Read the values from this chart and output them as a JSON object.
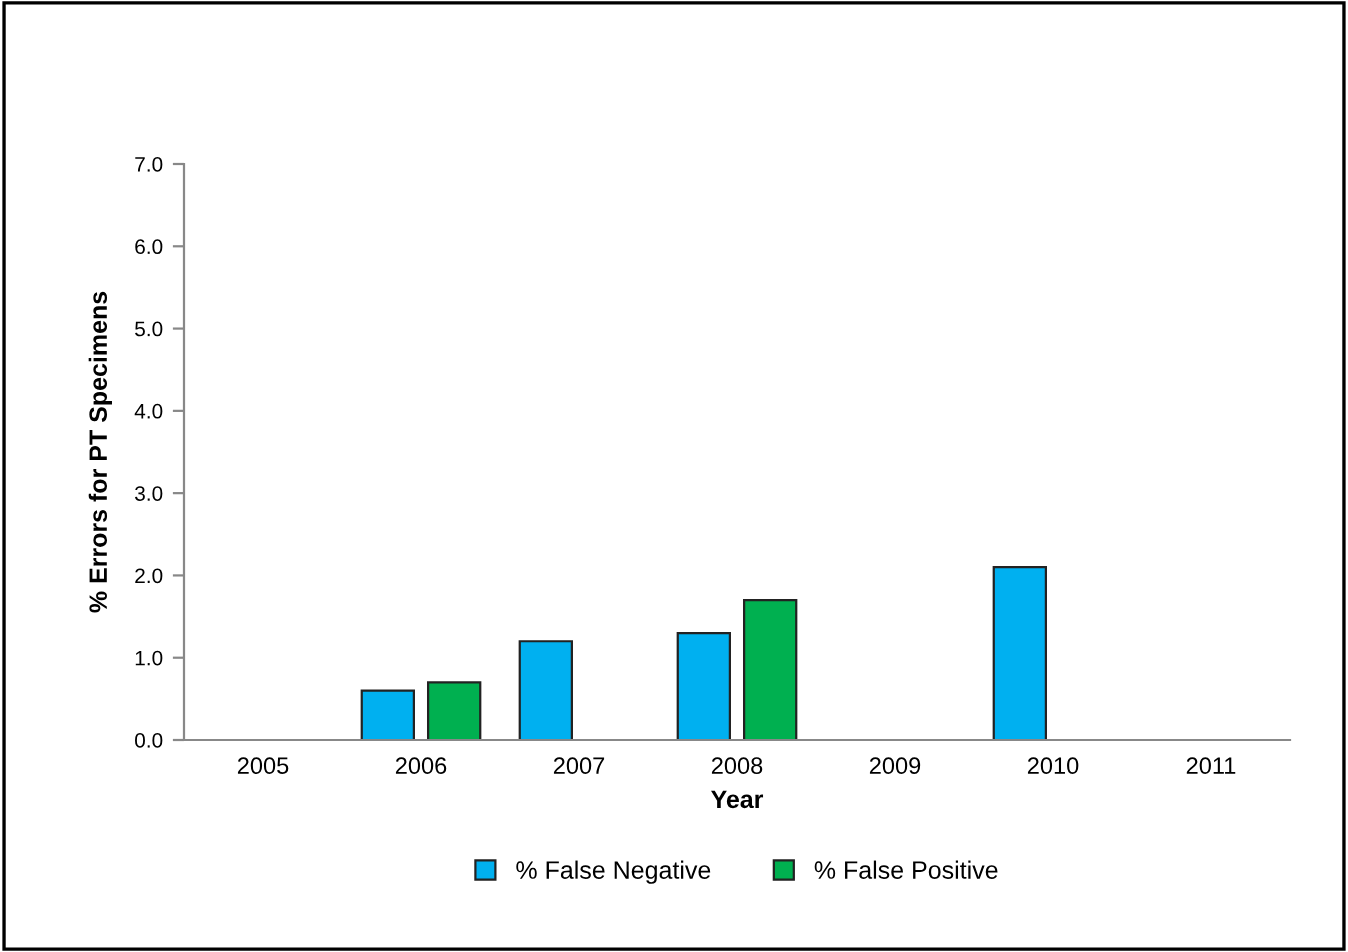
{
  "chart_data": {
    "type": "bar",
    "xlabel": "Year",
    "ylabel": "% Errors for PT Specimens",
    "categories": [
      "2005",
      "2006",
      "2007",
      "2008",
      "2009",
      "2010",
      "2011"
    ],
    "series": [
      {
        "name": "% False Negative",
        "color": "#00b0f0",
        "values": [
          null,
          0.6,
          1.2,
          1.3,
          null,
          2.1,
          null
        ]
      },
      {
        "name": "% False Positive",
        "color": "#00b050",
        "values": [
          null,
          0.7,
          null,
          1.7,
          null,
          null,
          null
        ]
      }
    ],
    "ylim": [
      0,
      7
    ],
    "yticks": [
      {
        "value": 0,
        "label": "0.0"
      },
      {
        "value": 1,
        "label": "1.0"
      },
      {
        "value": 2,
        "label": "2.0"
      },
      {
        "value": 3,
        "label": "3.0"
      },
      {
        "value": 4,
        "label": "4.0"
      },
      {
        "value": 5,
        "label": "5.0"
      },
      {
        "value": 6,
        "label": "6.0"
      },
      {
        "value": 7,
        "label": "7.0"
      }
    ],
    "grid": false,
    "legend": "bottom"
  }
}
